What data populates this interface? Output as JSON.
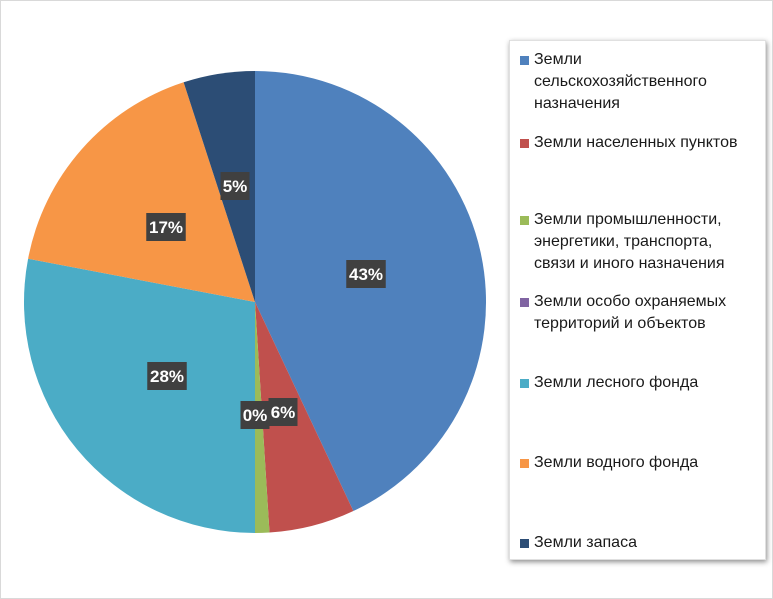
{
  "chart_data": {
    "type": "pie",
    "categories": [
      "Земли сельскохозяйственного назначения",
      "Земли населенных пунктов",
      "Земли промышленности, энергетики, транспорта, связи  и иного назначения",
      "Земли особо охраняемых территорий и объектов",
      "Земли лесного фонда",
      "Земли водного фонда",
      "Земли запаса"
    ],
    "legend_lines": [
      "Земли\nсельскохозяйственного\nназначения",
      "Земли населенных пунктов",
      "Земли промышленности,\nэнергетики, транспорта,\nсвязи  и иного назначения",
      "Земли особо охраняемых\nтерриторий и объектов",
      "Земли лесного фонда",
      "Земли водного фонда",
      "Земли запаса"
    ],
    "values": [
      43,
      6,
      1,
      0,
      28,
      17,
      5
    ],
    "data_labels": [
      "43%",
      "6%",
      "",
      "0%",
      "28%",
      "17%",
      "5%"
    ],
    "colors": [
      "#4f81bd",
      "#c0504d",
      "#9bbb59",
      "#8064a2",
      "#4bacc6",
      "#f79646",
      "#2c4d75"
    ],
    "legend_position": "right",
    "start_angle": "top, clockwise"
  }
}
